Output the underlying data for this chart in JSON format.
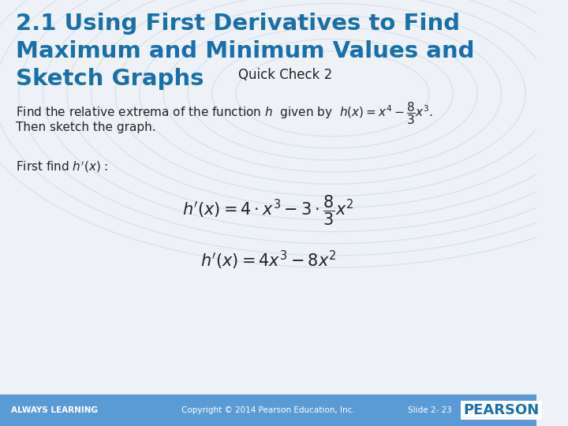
{
  "bg_color": "#eef2f7",
  "title_line1": "2.1 Using First Derivatives to Find",
  "title_line2": "Maximum and Minimum Values and",
  "title_line3": "Sketch Graphs",
  "quick_check": "Quick Check 2",
  "title_color": "#1a6fa8",
  "body_color": "#222222",
  "footer_bg": "#5b9bd5",
  "footer_text_left": "ALWAYS LEARNING",
  "footer_text_center": "Copyright © 2014 Pearson Education, Inc.",
  "footer_text_right": "Slide 2- 23",
  "pearson_color": "#1a6fa8",
  "watermark_color": "#c8d8e8"
}
